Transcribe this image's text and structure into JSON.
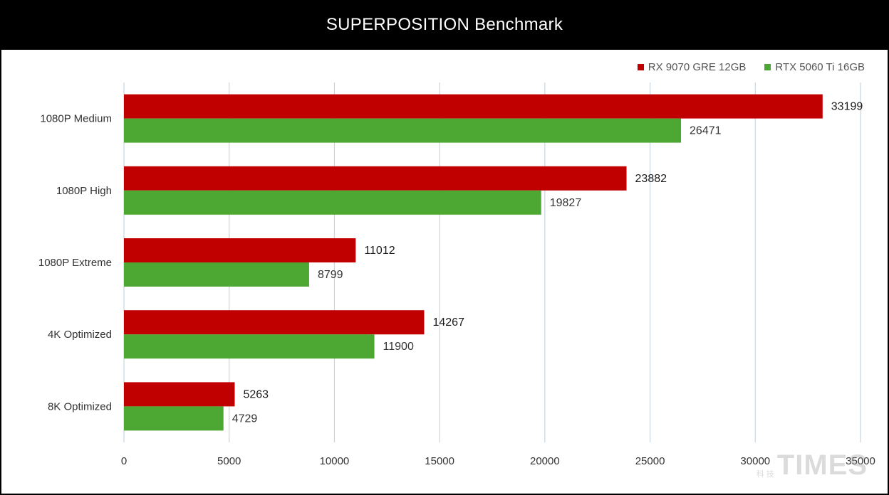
{
  "chart_data": {
    "type": "bar",
    "orientation": "horizontal",
    "title": "SUPERPOSITION Benchmark",
    "categories": [
      "1080P Medium",
      "1080P High",
      "1080P Extreme",
      "4K Optimized",
      "8K Optimized"
    ],
    "series": [
      {
        "name": "RX 9070 GRE 12GB",
        "color": "#c00000",
        "values": [
          33199,
          23882,
          11012,
          14267,
          5263
        ]
      },
      {
        "name": "RTX 5060 Ti 16GB",
        "color": "#4ca832",
        "values": [
          26471,
          19827,
          8799,
          11900,
          4729
        ]
      }
    ],
    "xlim": [
      0,
      35000
    ],
    "xticks": [
      0,
      5000,
      10000,
      15000,
      20000,
      25000,
      30000,
      35000
    ],
    "grid": true,
    "legend_position": "top-right"
  },
  "watermark": {
    "logo": "TIMES",
    "chinese": "科 技"
  }
}
